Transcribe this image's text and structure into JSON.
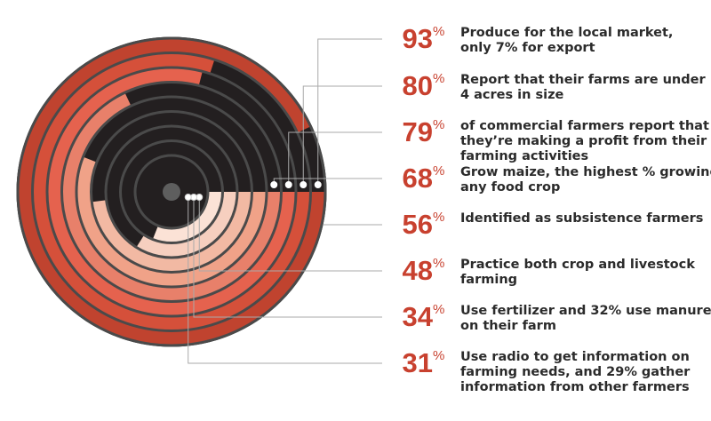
{
  "chart_data": {
    "type": "radial-bar",
    "percent_symbol": "%",
    "rings": [
      {
        "value": 93,
        "description": [
          "Produce for the local market,",
          "only 7% for export"
        ]
      },
      {
        "value": 80,
        "description": [
          "Report that their farms are under",
          "4 acres in size"
        ]
      },
      {
        "value": 79,
        "description": [
          "of commercial farmers report that",
          "they’re making a profit from their",
          "farming activities"
        ]
      },
      {
        "value": 68,
        "description": [
          "Grow maize, the highest % growing",
          "any food crop"
        ]
      },
      {
        "value": 56,
        "description": [
          "Identified as subsistence farmers"
        ]
      },
      {
        "value": 48,
        "description": [
          "Practice both crop and livestock",
          "farming"
        ]
      },
      {
        "value": 34,
        "description": [
          "Use fertilizer and 32% use manure",
          "on their farm"
        ]
      },
      {
        "value": 31,
        "description": [
          "Use radio to get information on",
          "farming needs, and 29% gather",
          "information from other farmers"
        ]
      }
    ]
  },
  "colors": {
    "value_text": "#c8412f",
    "description_text": "#2b2b2b",
    "remainder": "#231f20",
    "ring_border": "#4a4a4a",
    "leader_line": "#aaaaaa",
    "ring_fills": [
      "#c0432f",
      "#d5503a",
      "#e5624e",
      "#e8806a",
      "#f0a288",
      "#f2b9a3",
      "#f6cfbf",
      "#fbe2d6"
    ]
  }
}
